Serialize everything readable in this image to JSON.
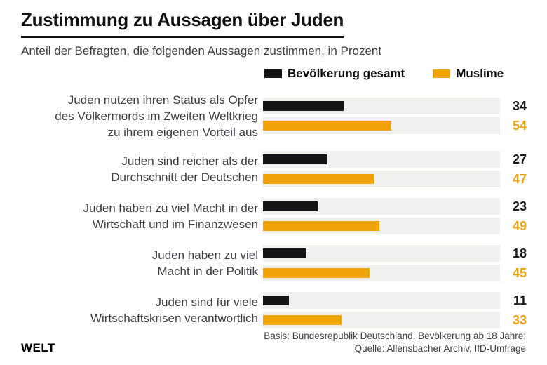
{
  "header": {
    "title": "Zustimmung zu Aussagen über Juden",
    "subtitle": "Anteil der Befragten, die folgenden Aussagen zustimmen, in Prozent"
  },
  "legend": [
    {
      "label": "Bevölkerung gesamt",
      "color": "#141414"
    },
    {
      "label": "Muslime",
      "color": "#F0A30A"
    }
  ],
  "chart_data": {
    "type": "bar",
    "orientation": "horizontal",
    "unit": "Prozent",
    "xlim": [
      0,
      100
    ],
    "track_color": "#f0f0ee",
    "categories": [
      [
        "Juden nutzen ihren Status als Opfer",
        "des Völkermords im Zweiten Weltkrieg",
        "zu ihrem eigenen Vorteil aus"
      ],
      [
        "Juden sind reicher als der",
        "Durchschnitt der Deutschen"
      ],
      [
        "Juden haben zu viel Macht in der",
        "Wirtschaft und im Finanzwesen"
      ],
      [
        "Juden haben zu viel",
        "Macht in der Politik"
      ],
      [
        "Juden sind für viele",
        "Wirtschaftskrisen verantwortlich"
      ]
    ],
    "series": [
      {
        "name": "Bevölkerung gesamt",
        "color": "#141414",
        "value_color": "#1a1a1a",
        "values": [
          34,
          27,
          23,
          18,
          11
        ]
      },
      {
        "name": "Muslime",
        "color": "#F0A30A",
        "value_color": "#F0A30A",
        "values": [
          54,
          47,
          49,
          45,
          33
        ]
      }
    ]
  },
  "footer": {
    "logo": "WELT",
    "source_line1": "Basis: Bundesrepublik Deutschland, Bevölkerung ab 18 Jahre;",
    "source_line2": "Quelle: Allensbacher Archiv, IfD-Umfrage"
  }
}
